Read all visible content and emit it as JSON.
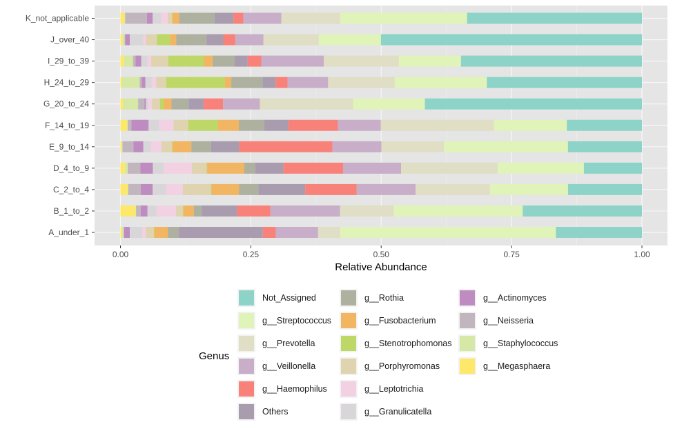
{
  "chart_data": {
    "type": "bar",
    "orientation": "horizontal",
    "stacked": true,
    "title": "",
    "xlabel": "Relative Abundance",
    "ylabel": "",
    "xlim": [
      0,
      1
    ],
    "xticks": [
      0,
      0.25,
      0.5,
      0.75,
      1.0
    ],
    "xtick_labels": [
      "0.00",
      "0.25",
      "0.50",
      "0.75",
      "1.00"
    ],
    "grid": true,
    "legend_title": "Genus",
    "legend_position": "bottom",
    "categories": [
      "A_under_1",
      "B_1_to_2",
      "C_2_to_4",
      "D_4_to_9",
      "E_9_to_14",
      "F_14_to_19",
      "G_20_to_24",
      "H_24_to_29",
      "I_29_to_39",
      "J_over_40",
      "K_not_applicable"
    ],
    "stack_order": [
      "g__Megasphaera",
      "g__Staphylococcus",
      "g__Neisseria",
      "g__Actinomyces",
      "g__Granulicatella",
      "g__Leptotrichia",
      "g__Porphyromonas",
      "g__Stenotrophomonas",
      "g__Fusobacterium",
      "g__Rothia",
      "Others",
      "g__Haemophilus",
      "g__Veillonella",
      "g__Prevotella",
      "g__Streptococcus",
      "Not_Assigned"
    ],
    "series": [
      {
        "name": "Not_Assigned",
        "color": "#8DD3C7",
        "values": [
          0.165,
          0.229,
          0.142,
          0.111,
          0.142,
          0.144,
          0.417,
          0.298,
          0.347,
          0.5,
          0.336
        ]
      },
      {
        "name": "g__Streptococcus",
        "color": "#E0F3B9",
        "values": [
          0.414,
          0.248,
          0.15,
          0.165,
          0.238,
          0.14,
          0.138,
          0.177,
          0.119,
          0.119,
          0.244
        ]
      },
      {
        "name": "g__Prevotella",
        "color": "#E0DEC5",
        "values": [
          0.042,
          0.103,
          0.143,
          0.185,
          0.12,
          0.217,
          0.179,
          0.128,
          0.144,
          0.106,
          0.113
        ]
      },
      {
        "name": "g__Veillonella",
        "color": "#C8AEC8",
        "values": [
          0.081,
          0.134,
          0.113,
          0.111,
          0.094,
          0.082,
          0.071,
          0.078,
          0.12,
          0.054,
          0.073
        ]
      },
      {
        "name": "g__Haemophilus",
        "color": "#F8827A",
        "values": [
          0.025,
          0.064,
          0.099,
          0.114,
          0.179,
          0.095,
          0.037,
          0.023,
          0.026,
          0.023,
          0.019
        ]
      },
      {
        "name": "Others",
        "color": "#A89CAE",
        "values": [
          0.161,
          0.068,
          0.09,
          0.054,
          0.054,
          0.046,
          0.029,
          0.025,
          0.025,
          0.032,
          0.036
        ]
      },
      {
        "name": "g__Rothia",
        "color": "#AEB0A0",
        "values": [
          0.021,
          0.015,
          0.037,
          0.021,
          0.038,
          0.049,
          0.033,
          0.06,
          0.042,
          0.058,
          0.068
        ]
      },
      {
        "name": "g__Fusobacterium",
        "color": "#F2B561",
        "values": [
          0.026,
          0.02,
          0.053,
          0.071,
          0.036,
          0.04,
          0.015,
          0.012,
          0.017,
          0.012,
          0.013
        ]
      },
      {
        "name": "g__Stenotrophomonas",
        "color": "#BDD866",
        "values": [
          0.001,
          0.001,
          0.001,
          0.001,
          0.001,
          0.057,
          0.007,
          0.113,
          0.068,
          0.025,
          0.001
        ]
      },
      {
        "name": "g__Porphyromonas",
        "color": "#DFD3B0",
        "values": [
          0.015,
          0.013,
          0.054,
          0.028,
          0.02,
          0.028,
          0.015,
          0.019,
          0.033,
          0.021,
          0.008
        ]
      },
      {
        "name": "g__Leptotrichia",
        "color": "#F1D1E2",
        "values": [
          0.007,
          0.038,
          0.032,
          0.054,
          0.02,
          0.028,
          0.007,
          0.009,
          0.007,
          0.005,
          0.013
        ]
      },
      {
        "name": "g__Granulicatella",
        "color": "#D9D6D9",
        "values": [
          0.024,
          0.017,
          0.026,
          0.021,
          0.015,
          0.02,
          0.005,
          0.012,
          0.012,
          0.026,
          0.016
        ]
      },
      {
        "name": "g__Actinomyces",
        "color": "#BE8CC0",
        "values": [
          0.011,
          0.013,
          0.023,
          0.024,
          0.019,
          0.033,
          0.003,
          0.007,
          0.011,
          0.009,
          0.011
        ]
      },
      {
        "name": "g__Neisseria",
        "color": "#C1B6BE",
        "values": [
          0.001,
          0.009,
          0.024,
          0.024,
          0.021,
          0.007,
          0.012,
          0.004,
          0.005,
          0.001,
          0.042
        ]
      },
      {
        "name": "g__Staphylococcus",
        "color": "#D6E8A6",
        "values": [
          0.003,
          0.001,
          0.001,
          0.005,
          0.001,
          0.001,
          0.029,
          0.034,
          0.017,
          0.004,
          0.001
        ]
      },
      {
        "name": "g__Megasphaera",
        "color": "#FDE869",
        "values": [
          0.003,
          0.029,
          0.014,
          0.009,
          0.003,
          0.013,
          0.005,
          0.003,
          0.007,
          0.004,
          0.008
        ]
      }
    ]
  },
  "legend": {
    "title": "Genus",
    "columns": [
      [
        "Not_Assigned",
        "g__Streptococcus",
        "g__Prevotella",
        "g__Veillonella",
        "g__Haemophilus",
        "Others"
      ],
      [
        "g__Rothia",
        "g__Fusobacterium",
        "g__Stenotrophomonas",
        "g__Porphyromonas",
        "g__Leptotrichia",
        "g__Granulicatella"
      ],
      [
        "g__Actinomyces",
        "g__Neisseria",
        "g__Staphylococcus",
        "g__Megasphaera"
      ]
    ]
  },
  "colors": {
    "panel_background": "#E5E5E5",
    "grid_major": "#F7F7F7",
    "grid_minor": "#EDEDED"
  }
}
